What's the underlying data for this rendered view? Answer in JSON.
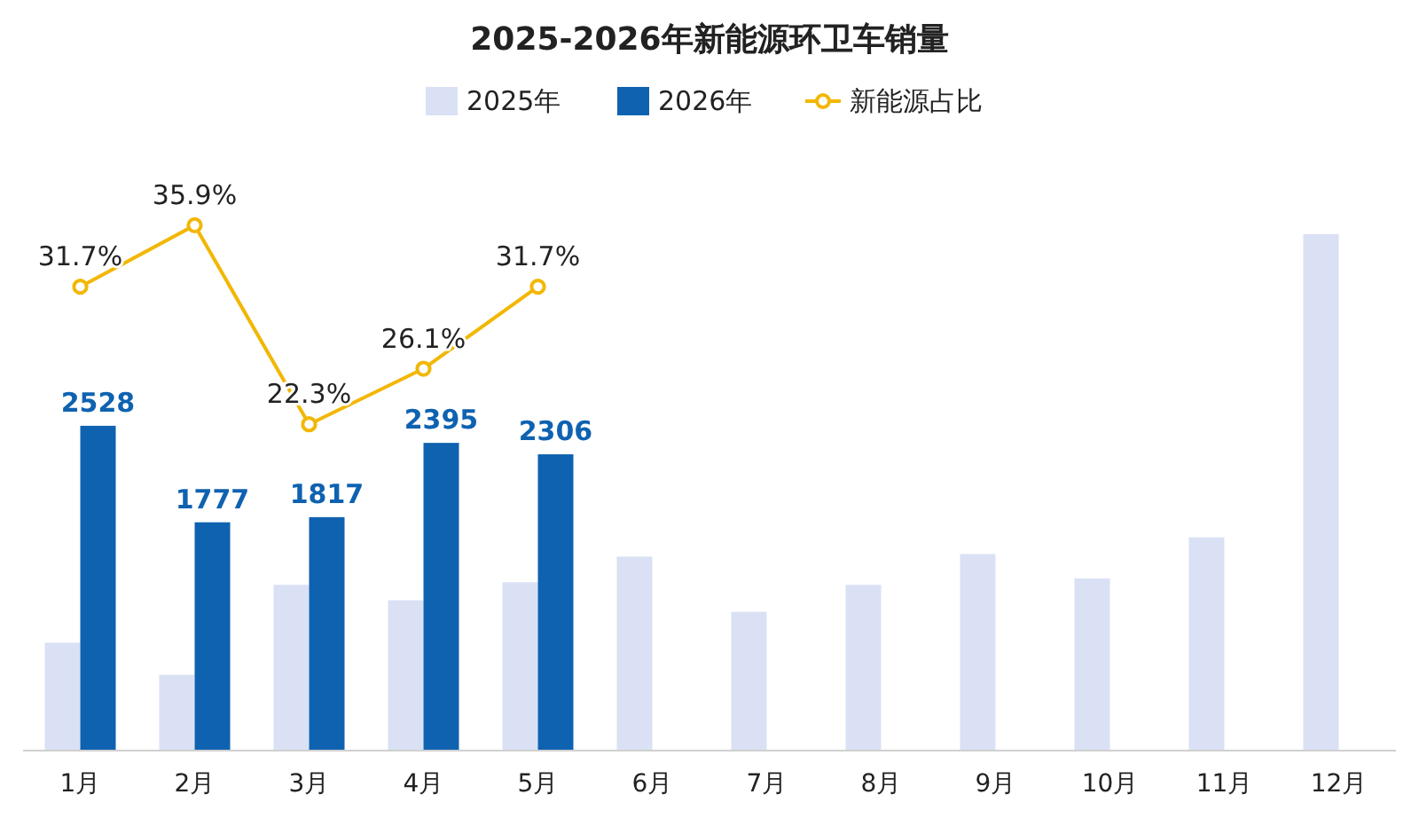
{
  "chart_data": {
    "type": "bar",
    "title": "2025-2026年新能源环卫车销量",
    "categories": [
      "1月",
      "2月",
      "3月",
      "4月",
      "5月",
      "6月",
      "7月",
      "8月",
      "9月",
      "10月",
      "11月",
      "12月"
    ],
    "series": [
      {
        "name": "2025年",
        "color": "#dae1f5",
        "values": [
          840,
          590,
          1290,
          1170,
          1310,
          1510,
          1080,
          1290,
          1530,
          1340,
          1660,
          4020
        ]
      },
      {
        "name": "2026年",
        "color": "#0f62b0",
        "values": [
          2528,
          1777,
          1817,
          2395,
          2306,
          null,
          null,
          null,
          null,
          null,
          null,
          null
        ],
        "value_labels": [
          "2528",
          "1777",
          "1817",
          "2395",
          "2306",
          null,
          null,
          null,
          null,
          null,
          null,
          null
        ]
      },
      {
        "name": "新能源占比",
        "type": "line",
        "axis": "y2",
        "color": "#f2b705",
        "values": [
          31.7,
          35.9,
          22.3,
          26.1,
          31.7,
          null,
          null,
          null,
          null,
          null,
          null,
          null
        ],
        "value_labels": [
          "31.7%",
          "35.9%",
          "22.3%",
          "26.1%",
          "31.7%",
          null,
          null,
          null,
          null,
          null,
          null,
          null
        ]
      }
    ],
    "tick_labels": "x",
    "legend": "top",
    "marker": "circle"
  }
}
